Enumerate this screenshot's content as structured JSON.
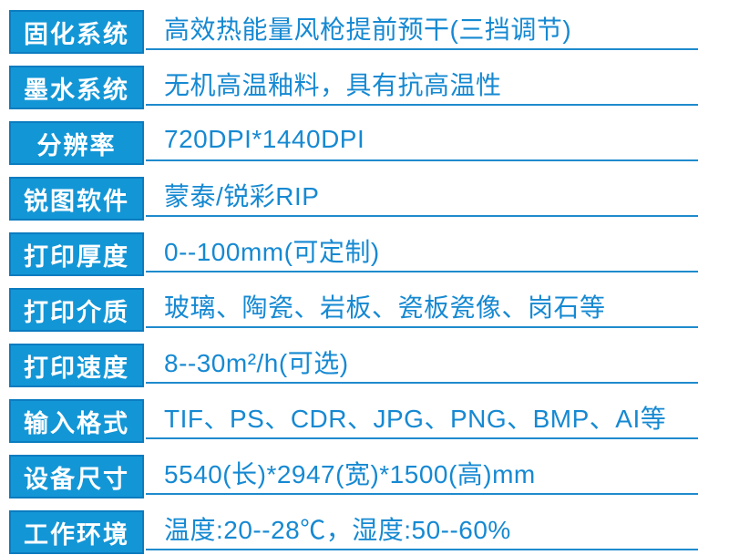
{
  "colors": {
    "box-fill": "#1396d6",
    "box-border": "#0b7cc0",
    "text-blue": "#1689d2",
    "line-blue": "#1f8bcd"
  },
  "spec_table": {
    "rows": [
      {
        "label": "固化系统",
        "value": "高效热能量风枪提前预干(三挡调节)"
      },
      {
        "label": "墨水系统",
        "value": "无机高温釉料，具有抗高温性"
      },
      {
        "label": "分辨率",
        "value": "720DPI*1440DPI"
      },
      {
        "label": "锐图软件",
        "value": "蒙泰/锐彩RIP"
      },
      {
        "label": "打印厚度",
        "value": "0--100mm(可定制)"
      },
      {
        "label": "打印介质",
        "value": "玻璃、陶瓷、岩板、瓷板瓷像、岗石等"
      },
      {
        "label": "打印速度",
        "value": "8--30m²/h(可选)"
      },
      {
        "label": "输入格式",
        "value": "TIF、PS、CDR、JPG、PNG、BMP、AI等"
      },
      {
        "label": "设备尺寸",
        "value": "5540(长)*2947(宽)*1500(高)mm"
      },
      {
        "label": "工作环境",
        "value": "温度:20--28℃，湿度:50--60%"
      }
    ]
  }
}
